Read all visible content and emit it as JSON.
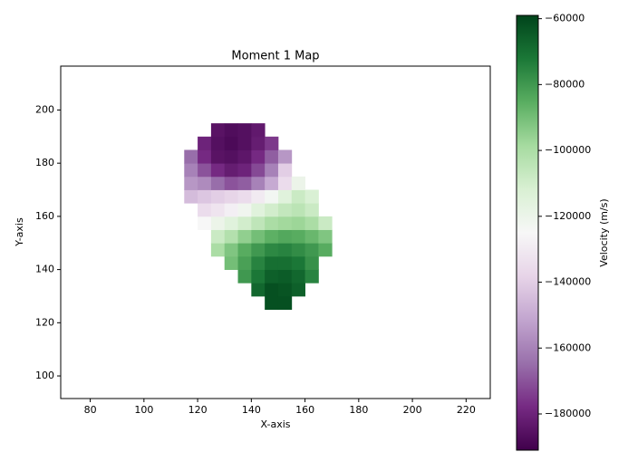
{
  "chart_data": {
    "type": "heatmap",
    "title": "Moment 1 Map",
    "xlabel": "X-axis",
    "ylabel": "Y-axis",
    "xlim": [
      69,
      229
    ],
    "ylim": [
      91.5,
      216.5
    ],
    "xticks": [
      80,
      100,
      120,
      140,
      160,
      180,
      200,
      220
    ],
    "yticks": [
      100,
      120,
      140,
      160,
      180,
      200
    ],
    "x_bins": [
      115,
      120,
      125,
      130,
      135,
      140,
      145,
      150,
      155,
      160,
      165,
      170
    ],
    "y_bins": [
      125,
      130,
      135,
      140,
      145,
      150,
      155,
      160,
      165,
      170,
      175,
      180,
      185,
      190,
      195
    ],
    "z": [
      [
        null,
        null,
        null,
        null,
        null,
        null,
        -62000,
        -62000,
        null,
        null,
        null
      ],
      [
        null,
        null,
        null,
        null,
        null,
        -68000,
        -62000,
        -63000,
        -66000,
        null,
        null
      ],
      [
        null,
        null,
        null,
        null,
        -80000,
        -72000,
        -66000,
        -65000,
        -68000,
        -75000,
        null
      ],
      [
        null,
        null,
        null,
        -90000,
        -82000,
        -75000,
        -70000,
        -70000,
        -72000,
        -78000,
        null
      ],
      [
        null,
        null,
        -100000,
        -92000,
        -85000,
        -80000,
        -76000,
        -75000,
        -77000,
        -80000,
        -85000
      ],
      [
        null,
        null,
        -108000,
        -102000,
        -95000,
        -90000,
        -86000,
        -84000,
        -85000,
        -88000,
        -92000
      ],
      [
        null,
        -125000,
        -120000,
        -115000,
        -110000,
        -105000,
        -100000,
        -98000,
        -97000,
        -100000,
        -108000
      ],
      [
        null,
        -135000,
        -132000,
        -128000,
        -122000,
        -115000,
        -110000,
        -106000,
        -104000,
        -108000,
        null
      ],
      [
        -145000,
        -142000,
        -140000,
        -138000,
        -135000,
        -130000,
        -123000,
        -115000,
        -108000,
        -112000,
        null
      ],
      [
        -155000,
        -158000,
        -165000,
        -170000,
        -168000,
        -160000,
        -150000,
        -135000,
        -120000,
        null,
        null
      ],
      [
        -160000,
        -170000,
        -178000,
        -182000,
        -180000,
        -172000,
        -160000,
        -140000,
        null,
        null,
        null
      ],
      [
        -165000,
        -178000,
        -185000,
        -186000,
        -184000,
        -178000,
        -168000,
        -155000,
        null,
        null,
        null
      ],
      [
        null,
        -180000,
        -186000,
        -188000,
        -186000,
        -182000,
        -175000,
        null,
        null,
        null,
        null
      ],
      [
        null,
        null,
        -185000,
        -187000,
        -186000,
        -183000,
        null,
        null,
        null,
        null,
        null
      ]
    ],
    "colormap": [
      "#40004b",
      "#762a83",
      "#9970ab",
      "#c2a5cf",
      "#e7d4e8",
      "#f7f7f7",
      "#d9f0d3",
      "#a6dba0",
      "#5aae61",
      "#1b7837",
      "#00441b"
    ],
    "clim": [
      -191000,
      -59000
    ],
    "colorbar_label": "Velocity (m/s)",
    "cticks": [
      {
        "value": -60000,
        "label": "−60000"
      },
      {
        "value": -80000,
        "label": "−80000"
      },
      {
        "value": -100000,
        "label": "−100000"
      },
      {
        "value": -120000,
        "label": "−120000"
      },
      {
        "value": -140000,
        "label": "−140000"
      },
      {
        "value": -160000,
        "label": "−160000"
      },
      {
        "value": -180000,
        "label": "−180000"
      }
    ]
  }
}
